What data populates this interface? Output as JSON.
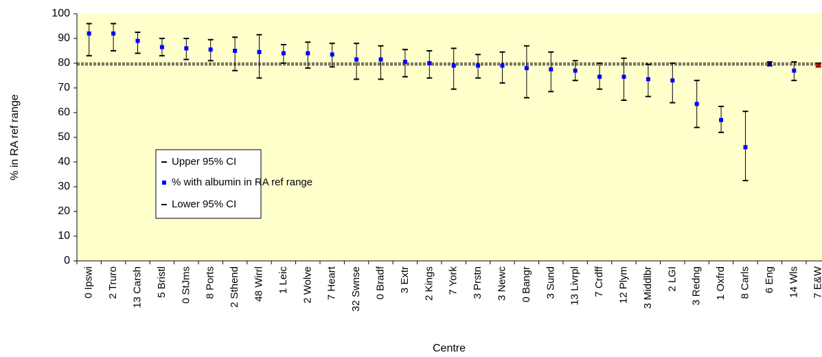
{
  "chart_data": {
    "type": "errorbar",
    "x_label": "Centre",
    "y_label": "% in RA ref range",
    "categories": [
      "0 Ipswi",
      "2 Truro",
      "13 Carsh",
      "5 Bristl",
      "0 StJms",
      "8 Ports",
      "2 Sthend",
      "48 Wirrl",
      "1 Leic",
      "2 Wolve",
      "7 Heart",
      "32 Swnse",
      "0 Bradf",
      "3 Extr",
      "2 Kings",
      "7 York",
      "3 Prstn",
      "3 Newc",
      "0 Bangr",
      "3 Sund",
      "13 Livrpl",
      "7 Crdff",
      "12 Plym",
      "3 Middlbr",
      "2 LGI",
      "3 Redng",
      "1 Oxfrd",
      "8 Carls",
      "6 Eng",
      "14 Wls",
      "7 E&W"
    ],
    "series": [
      {
        "name": "Upper 95% CI",
        "color": "#000000",
        "values": [
          96,
          96,
          92.5,
          90,
          90,
          89.5,
          90.5,
          91.5,
          87.5,
          88.5,
          88,
          88,
          87,
          85.5,
          85,
          86,
          83.5,
          84.5,
          87,
          84.5,
          81,
          80,
          82,
          79.5,
          80,
          73,
          62.5,
          60.5,
          80.5,
          80.5,
          80
        ]
      },
      {
        "name": "% with albumin in RA ref range",
        "color": "#0000ff",
        "colors": [
          "#0000ff",
          "#0000ff",
          "#0000ff",
          "#0000ff",
          "#0000ff",
          "#0000ff",
          "#0000ff",
          "#0000ff",
          "#0000ff",
          "#0000ff",
          "#0000ff",
          "#0000ff",
          "#0000ff",
          "#0000ff",
          "#0000ff",
          "#0000ff",
          "#0000ff",
          "#0000ff",
          "#0000ff",
          "#0000ff",
          "#0000ff",
          "#0000ff",
          "#0000ff",
          "#0000ff",
          "#0000ff",
          "#0000ff",
          "#0000ff",
          "#0000ff",
          "#000080",
          "#0000ff",
          "#c00000"
        ],
        "values": [
          92,
          92,
          89,
          86.5,
          86,
          85.5,
          85,
          84.5,
          84,
          84,
          83.5,
          81.5,
          81.5,
          80.5,
          80,
          79,
          79,
          79,
          78,
          77.5,
          77,
          74.5,
          74.5,
          73.5,
          73,
          63.5,
          57,
          46,
          79.5,
          77,
          79
        ]
      },
      {
        "name": "Lower 95% CI",
        "color": "#000000",
        "values": [
          83,
          85,
          84,
          83,
          81.5,
          81,
          77,
          74,
          80,
          78,
          78.5,
          73.5,
          73.5,
          74.5,
          74,
          69.5,
          74,
          72,
          66,
          68.5,
          73,
          69.5,
          65,
          66.5,
          64,
          54,
          52,
          32.5,
          79,
          73,
          78.5
        ]
      }
    ],
    "reference_lines": [
      80,
      79.3
    ],
    "ylim": [
      0,
      100
    ],
    "yticks": [
      0,
      10,
      20,
      30,
      40,
      50,
      60,
      70,
      80,
      90,
      100
    ],
    "plot_background": "#ffffcc"
  }
}
